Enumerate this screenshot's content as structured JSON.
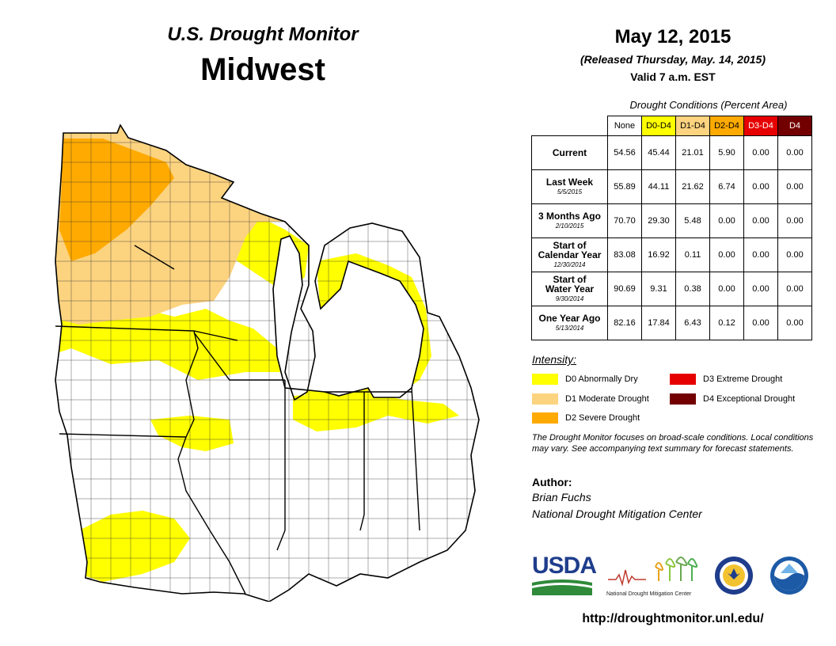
{
  "header": {
    "subtitle": "U.S. Drought Monitor",
    "region": "Midwest"
  },
  "date_block": {
    "date": "May 12, 2015",
    "released": "(Released Thursday, May. 14, 2015)",
    "valid": "Valid  7 a.m. EST"
  },
  "table": {
    "caption": "Drought Conditions (Percent Area)",
    "columns": [
      {
        "label": "None",
        "color": "#ffffff",
        "text_color": "#000000"
      },
      {
        "label": "D0-D4",
        "color": "#ffff00",
        "text_color": "#000000"
      },
      {
        "label": "D1-D4",
        "color": "#fcd37f",
        "text_color": "#000000"
      },
      {
        "label": "D2-D4",
        "color": "#ffaa00",
        "text_color": "#000000"
      },
      {
        "label": "D3-D4",
        "color": "#e60000",
        "text_color": "#ffffff"
      },
      {
        "label": "D4",
        "color": "#730000",
        "text_color": "#ffffff"
      }
    ],
    "rows": [
      {
        "label": "Current",
        "sub": "",
        "values": [
          "54.56",
          "45.44",
          "21.01",
          "5.90",
          "0.00",
          "0.00"
        ]
      },
      {
        "label": "Last Week",
        "sub": "5/5/2015",
        "values": [
          "55.89",
          "44.11",
          "21.62",
          "6.74",
          "0.00",
          "0.00"
        ]
      },
      {
        "label": "3 Months Ago",
        "sub": "2/10/2015",
        "values": [
          "70.70",
          "29.30",
          "5.48",
          "0.00",
          "0.00",
          "0.00"
        ]
      },
      {
        "label": "Start of\nCalendar Year",
        "sub": "12/30/2014",
        "values": [
          "83.08",
          "16.92",
          "0.11",
          "0.00",
          "0.00",
          "0.00"
        ]
      },
      {
        "label": "Start of\nWater Year",
        "sub": "9/30/2014",
        "values": [
          "90.69",
          "9.31",
          "0.38",
          "0.00",
          "0.00",
          "0.00"
        ]
      },
      {
        "label": "One Year Ago",
        "sub": "5/13/2014",
        "values": [
          "82.16",
          "17.84",
          "6.43",
          "0.12",
          "0.00",
          "0.00"
        ]
      }
    ]
  },
  "legend": {
    "title": "Intensity:",
    "items": [
      {
        "label": "D0 Abnormally Dry",
        "color": "#ffff00"
      },
      {
        "label": "D1 Moderate Drought",
        "color": "#fcd37f"
      },
      {
        "label": "D2 Severe Drought",
        "color": "#ffaa00"
      },
      {
        "label": "D3 Extreme Drought",
        "color": "#e60000"
      },
      {
        "label": "D4 Exceptional Drought",
        "color": "#730000"
      }
    ]
  },
  "note": "The Drought Monitor focuses on broad-scale conditions. Local conditions may vary. See accompanying text summary for forecast statements.",
  "author": {
    "label": "Author:",
    "name": "Brian Fuchs",
    "org": "National Drought Mitigation Center"
  },
  "logos": {
    "usda": "USDA",
    "ndmc": "National Drought Mitigation Center"
  },
  "url": "http://droughtmonitor.unl.edu/"
}
